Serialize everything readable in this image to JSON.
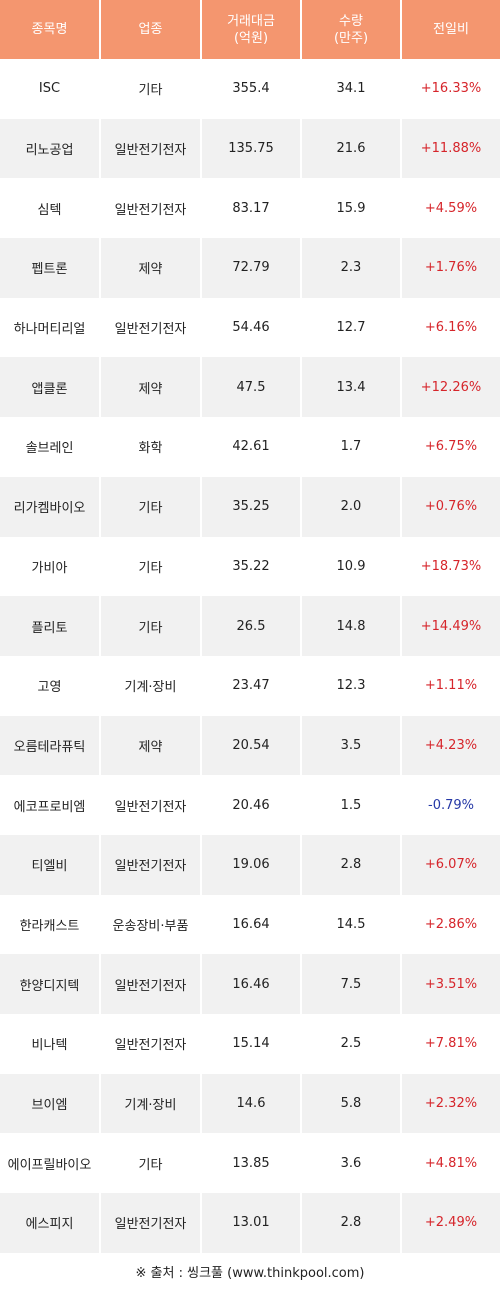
{
  "headers": [
    "종목명",
    "업종",
    "거래대금\n(억원)",
    "수량\n(만주)",
    "전일비"
  ],
  "rows": [
    {
      "name": "ISC",
      "sector": "기타",
      "amount": "355.4",
      "volume": "34.1",
      "change": "+16.33%"
    },
    {
      "name": "리노공업",
      "sector": "일반전기전자",
      "amount": "135.75",
      "volume": "21.6",
      "change": "+11.88%"
    },
    {
      "name": "심텍",
      "sector": "일반전기전자",
      "amount": "83.17",
      "volume": "15.9",
      "change": "+4.59%"
    },
    {
      "name": "펩트론",
      "sector": "제약",
      "amount": "72.79",
      "volume": "2.3",
      "change": "+1.76%"
    },
    {
      "name": "하나머티리얼",
      "sector": "일반전기전자",
      "amount": "54.46",
      "volume": "12.7",
      "change": "+6.16%"
    },
    {
      "name": "앱클론",
      "sector": "제약",
      "amount": "47.5",
      "volume": "13.4",
      "change": "+12.26%"
    },
    {
      "name": "솔브레인",
      "sector": "화학",
      "amount": "42.61",
      "volume": "1.7",
      "change": "+6.75%"
    },
    {
      "name": "리가켐바이오",
      "sector": "기타",
      "amount": "35.25",
      "volume": "2.0",
      "change": "+0.76%"
    },
    {
      "name": "가비아",
      "sector": "기타",
      "amount": "35.22",
      "volume": "10.9",
      "change": "+18.73%"
    },
    {
      "name": "플리토",
      "sector": "기타",
      "amount": "26.5",
      "volume": "14.8",
      "change": "+14.49%"
    },
    {
      "name": "고영",
      "sector": "기계·장비",
      "amount": "23.47",
      "volume": "12.3",
      "change": "+1.11%"
    },
    {
      "name": "오름테라퓨틱",
      "sector": "제약",
      "amount": "20.54",
      "volume": "3.5",
      "change": "+4.23%"
    },
    {
      "name": "에코프로비엠",
      "sector": "일반전기전자",
      "amount": "20.46",
      "volume": "1.5",
      "change": "-0.79%"
    },
    {
      "name": "티엘비",
      "sector": "일반전기전자",
      "amount": "19.06",
      "volume": "2.8",
      "change": "+6.07%"
    },
    {
      "name": "한라캐스트",
      "sector": "운송장비·부품",
      "amount": "16.64",
      "volume": "14.5",
      "change": "+2.86%"
    },
    {
      "name": "한양디지텍",
      "sector": "일반전기전자",
      "amount": "16.46",
      "volume": "7.5",
      "change": "+3.51%"
    },
    {
      "name": "비나텍",
      "sector": "일반전기전자",
      "amount": "15.14",
      "volume": "2.5",
      "change": "+7.81%"
    },
    {
      "name": "브이엠",
      "sector": "기계·장비",
      "amount": "14.6",
      "volume": "5.8",
      "change": "+2.32%"
    },
    {
      "name": "에이프릴바이오",
      "sector": "기타",
      "amount": "13.85",
      "volume": "3.6",
      "change": "+4.81%"
    },
    {
      "name": "에스피지",
      "sector": "일반전기전자",
      "amount": "13.01",
      "volume": "2.8",
      "change": "+2.49%"
    }
  ],
  "footer": "※ 출처 : 씽크풀 (www.thinkpool.com)",
  "colors": {
    "header_bg": "#f4966f",
    "row_alt_bg": "#f1f1f1",
    "up": "#d6252b",
    "down": "#2538a6"
  }
}
